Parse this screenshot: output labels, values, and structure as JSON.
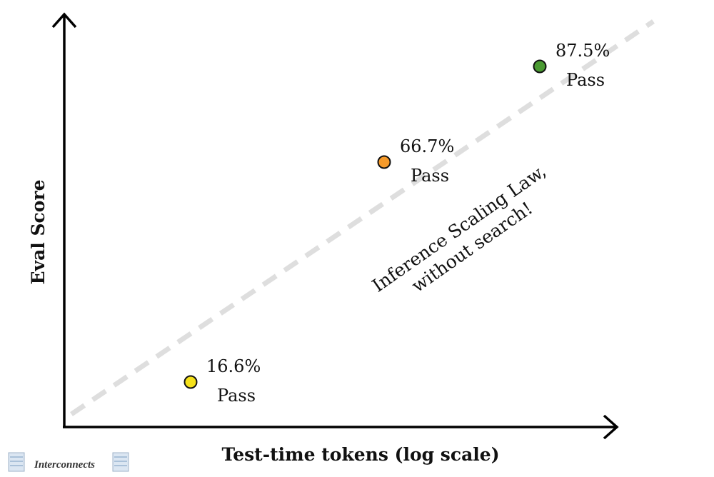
{
  "chart_data": {
    "type": "scatter",
    "title": "",
    "xlabel": "Test-time tokens (log scale)",
    "ylabel": "Eval Score",
    "x_scale": "log",
    "grid": false,
    "ticks_shown": false,
    "points": [
      {
        "label_value": "16.6%",
        "label_text": "Pass",
        "y": 16.6,
        "color": "#f5e11a"
      },
      {
        "label_value": "66.7%",
        "label_text": "Pass",
        "y": 66.7,
        "color": "#f59a2a"
      },
      {
        "label_value": "87.5%",
        "label_text": "Pass",
        "y": 87.5,
        "color": "#4a9a32"
      }
    ],
    "trend_line": {
      "style": "dashed",
      "color": "#dcdcdc"
    },
    "annotation": {
      "line1": "Inference Scaling Law,",
      "line2": "without search!"
    }
  },
  "branding": {
    "logo_text": "Interconnects"
  }
}
